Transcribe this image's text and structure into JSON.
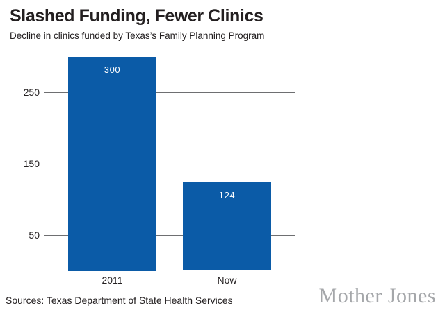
{
  "header": {
    "title": "Slashed Funding, Fewer Clinics",
    "subtitle": "Decline in clinics funded by Texas’s Family Planning Program"
  },
  "chart_data": {
    "type": "bar",
    "title": "Slashed Funding, Fewer Clinics",
    "subtitle": "Decline in clinics funded by Texas’s Family Planning Program",
    "categories": [
      "2011",
      "Now"
    ],
    "values": [
      300,
      124
    ],
    "value_labels": [
      "300",
      "124"
    ],
    "xlabel": "",
    "ylabel": "",
    "yticks": [
      50,
      150,
      250
    ],
    "ylim": [
      0,
      310
    ],
    "grid": true,
    "legend": "none",
    "bar_color": "#0b5ba7",
    "gridline_color": "#6e6f71",
    "label_color": "#231f20",
    "value_label_color": "#ffffff"
  },
  "footer": {
    "sources": "Sources: Texas Department of State Health Services",
    "logo": "Mother Jones",
    "logo_color": "#a5a7aa"
  }
}
